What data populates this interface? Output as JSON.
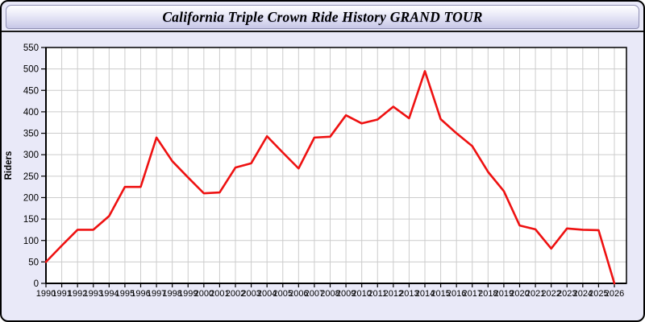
{
  "window": {
    "title": "California Triple Crown Ride History GRAND TOUR"
  },
  "chart_data": {
    "type": "line",
    "title": "California Triple Crown Ride History GRAND TOUR",
    "xlabel": "",
    "ylabel": "Riders",
    "categories": [
      "1990",
      "1991",
      "1992",
      "1993",
      "1994",
      "1995",
      "1996",
      "1997",
      "1998",
      "1999",
      "2000",
      "2001",
      "2002",
      "2003",
      "2004",
      "2005",
      "2006",
      "2007",
      "2008",
      "2009",
      "2010",
      "2011",
      "2012",
      "2013",
      "2014",
      "2015",
      "2016",
      "2017",
      "2018",
      "2019",
      "2020",
      "2021",
      "2022",
      "2023",
      "2024",
      "2025",
      "2026"
    ],
    "values": [
      50,
      88,
      125,
      125,
      157,
      225,
      225,
      340,
      285,
      247,
      210,
      212,
      270,
      280,
      343,
      305,
      268,
      340,
      342,
      392,
      373,
      382,
      412,
      385,
      495,
      383,
      350,
      320,
      260,
      215,
      135,
      126,
      81,
      128,
      125,
      124,
      0
    ],
    "series_name": "Riders",
    "ylim": [
      0,
      550
    ],
    "ytick_step": 50,
    "grid": true,
    "legend": "none",
    "line_color": "#ee1111",
    "grid_color": "#cccccc",
    "axis_color": "#000000",
    "plot_bg": "#ffffff",
    "window_bg": "#e9e9f8"
  }
}
